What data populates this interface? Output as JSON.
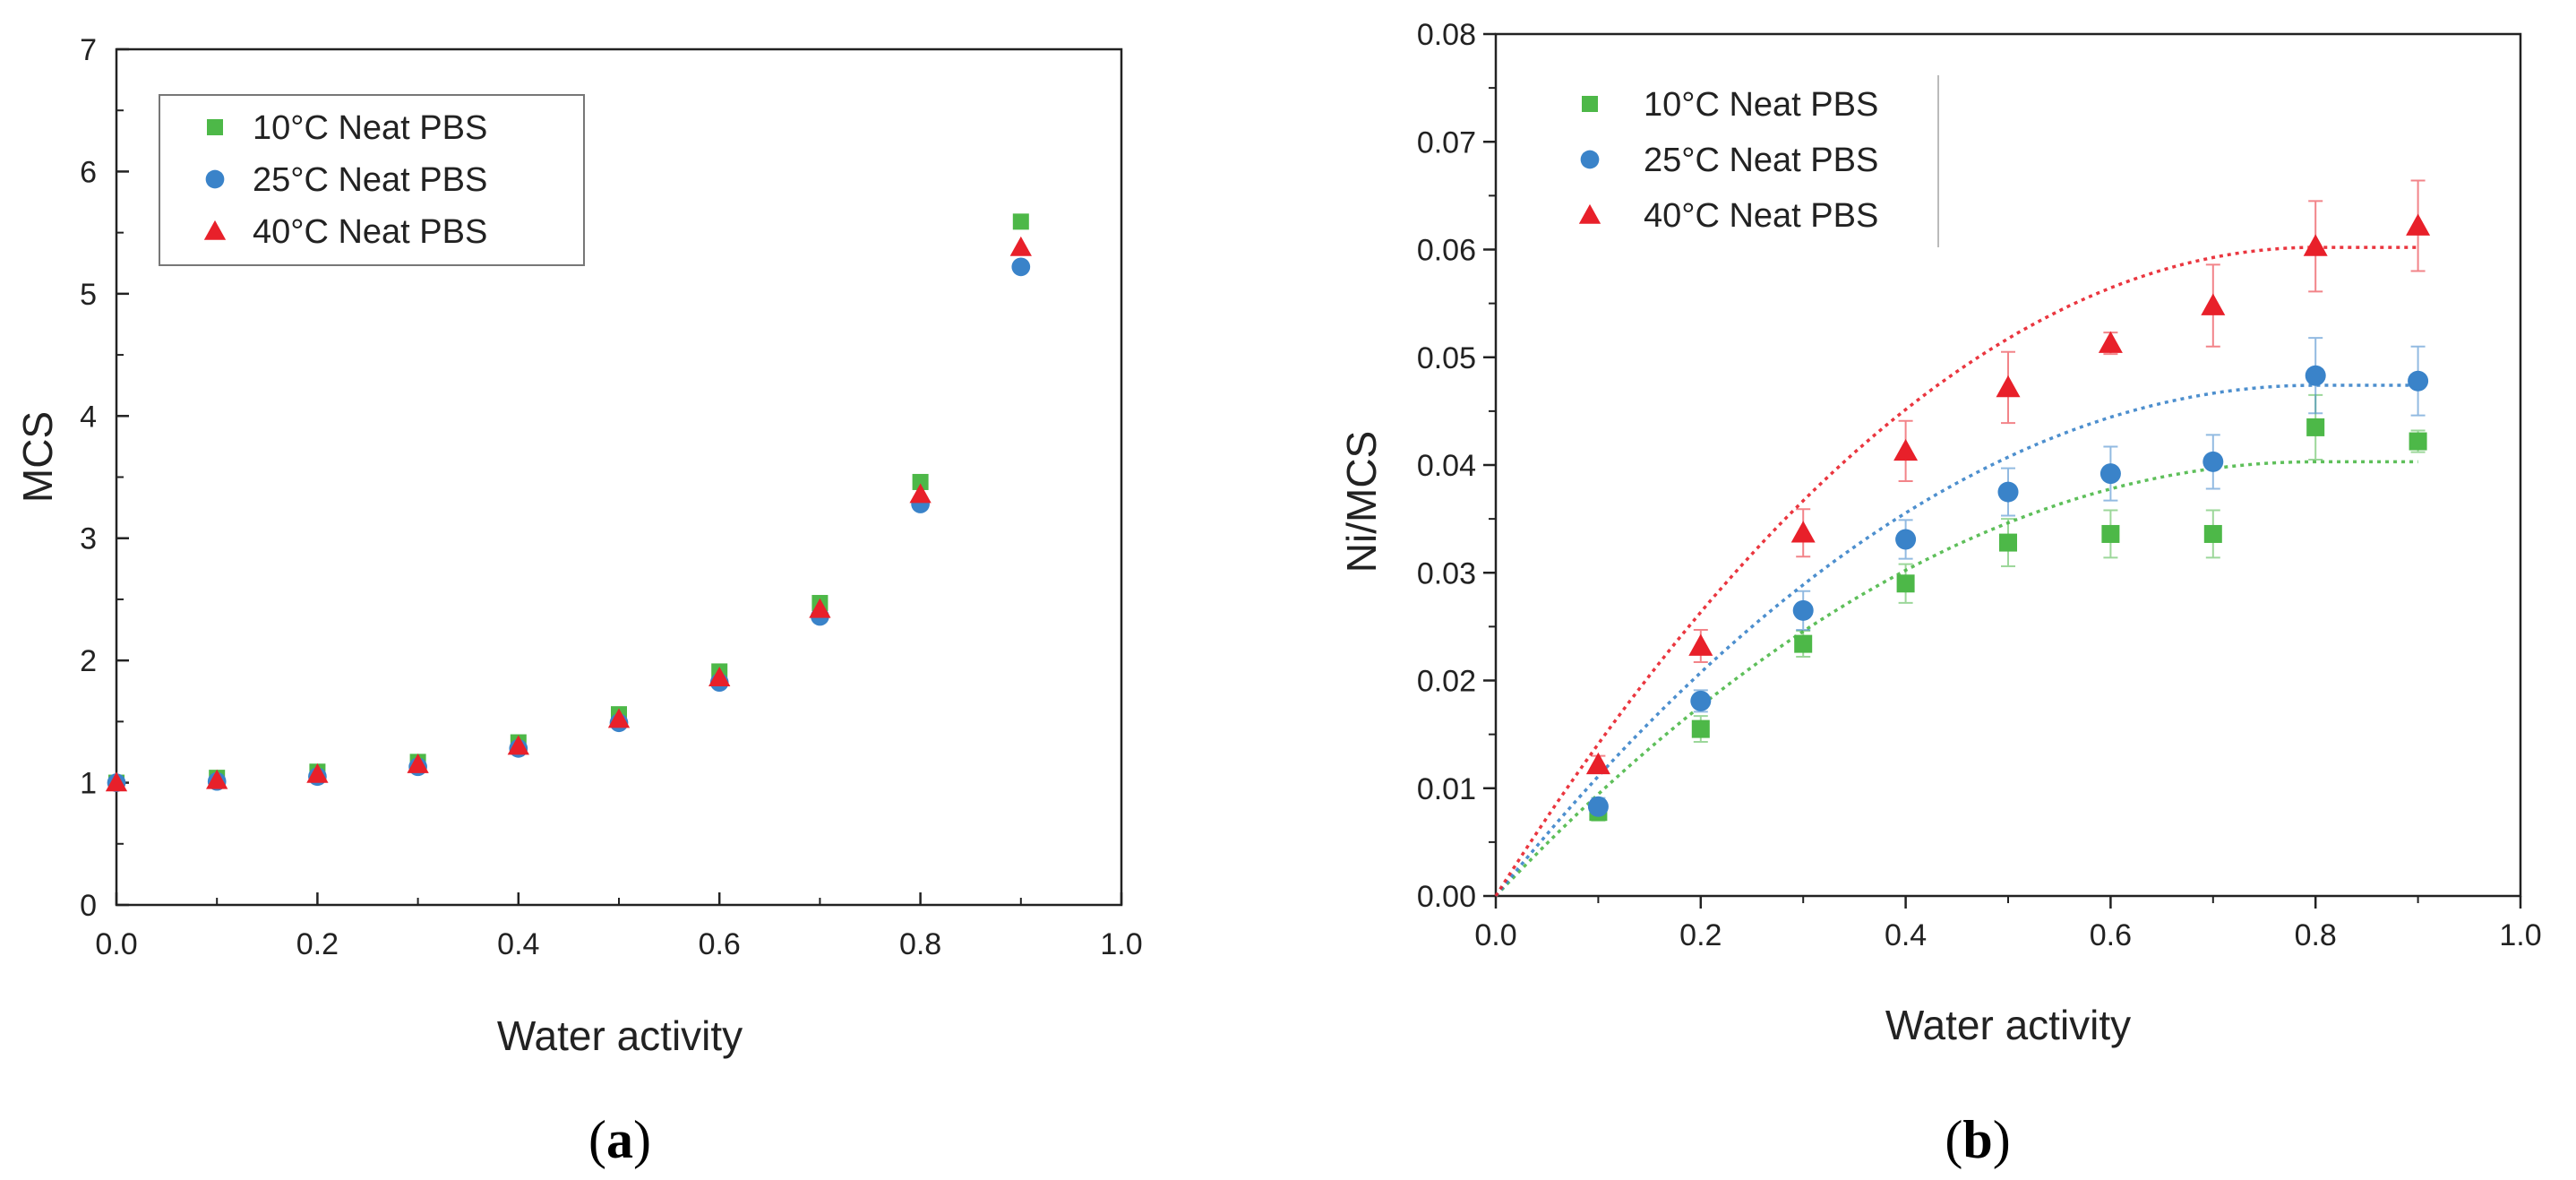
{
  "colors": {
    "green": "#4db848",
    "blue": "#3a83c9",
    "red": "#e8202a",
    "axis": "#222222"
  },
  "legend": [
    "10°C Neat PBS",
    "25°C Neat PBS",
    "40°C Neat PBS"
  ],
  "chart_data": [
    {
      "type": "scatter",
      "panel": "a",
      "caption": {
        "open": "(",
        "letter": "a",
        "close": ")"
      },
      "xlabel": "Water activity",
      "ylabel": "MCS",
      "xlim": [
        0.0,
        1.0
      ],
      "ylim": [
        0,
        7
      ],
      "xticks": [
        "0.0",
        "0.2",
        "0.4",
        "0.6",
        "0.8",
        "1.0"
      ],
      "yticks": [
        "0",
        "1",
        "2",
        "3",
        "4",
        "5",
        "6",
        "7"
      ],
      "legend_position": "top-left",
      "series": [
        {
          "name": "10°C Neat PBS",
          "marker": "square",
          "color": "#4db848",
          "x": [
            0.0,
            0.1,
            0.2,
            0.3,
            0.4,
            0.5,
            0.6,
            0.7,
            0.8,
            0.9
          ],
          "y": [
            1.0,
            1.04,
            1.09,
            1.17,
            1.33,
            1.56,
            1.91,
            2.47,
            3.46,
            5.59
          ]
        },
        {
          "name": "25°C Neat PBS",
          "marker": "circle",
          "color": "#3a83c9",
          "x": [
            0.0,
            0.1,
            0.2,
            0.3,
            0.4,
            0.5,
            0.6,
            0.7,
            0.8,
            0.9
          ],
          "y": [
            1.0,
            1.01,
            1.05,
            1.13,
            1.28,
            1.49,
            1.82,
            2.36,
            3.28,
            5.22
          ]
        },
        {
          "name": "40°C Neat PBS",
          "marker": "triangle",
          "color": "#e8202a",
          "x": [
            0.0,
            0.1,
            0.2,
            0.3,
            0.4,
            0.5,
            0.6,
            0.7,
            0.8,
            0.9
          ],
          "y": [
            1.0,
            1.02,
            1.07,
            1.15,
            1.3,
            1.52,
            1.86,
            2.42,
            3.36,
            5.38
          ]
        }
      ]
    },
    {
      "type": "scatter",
      "panel": "b",
      "caption": {
        "open": "(",
        "letter": "b",
        "close": ")"
      },
      "xlabel": "Water activity",
      "ylabel": "Ni/MCS",
      "xlim": [
        0.0,
        1.0
      ],
      "ylim": [
        0.0,
        0.08
      ],
      "xticks": [
        "0.0",
        "0.2",
        "0.4",
        "0.6",
        "0.8",
        "1.0"
      ],
      "yticks": [
        "0.00",
        "0.01",
        "0.02",
        "0.03",
        "0.04",
        "0.05",
        "0.06",
        "0.07",
        "0.08"
      ],
      "legend_position": "top-left",
      "series": [
        {
          "name": "10°C Neat PBS",
          "marker": "square",
          "color": "#4db848",
          "x": [
            0.1,
            0.2,
            0.3,
            0.4,
            0.5,
            0.6,
            0.7,
            0.8,
            0.9
          ],
          "y": [
            0.0078,
            0.0155,
            0.0234,
            0.029,
            0.0328,
            0.0336,
            0.0336,
            0.0435,
            0.0422
          ],
          "err": [
            0.0008,
            0.0012,
            0.0012,
            0.0018,
            0.0022,
            0.0022,
            0.0022,
            0.003,
            0.001
          ],
          "fit": {
            "peak": 0.0403,
            "at": 0.8
          }
        },
        {
          "name": "25°C Neat PBS",
          "marker": "circle",
          "color": "#3a83c9",
          "x": [
            0.1,
            0.2,
            0.3,
            0.4,
            0.5,
            0.6,
            0.7,
            0.8,
            0.9
          ],
          "y": [
            0.0083,
            0.0181,
            0.0265,
            0.0331,
            0.0375,
            0.0392,
            0.0403,
            0.0483,
            0.0478
          ],
          "err": [
            0.0008,
            0.001,
            0.0018,
            0.0018,
            0.0022,
            0.0025,
            0.0025,
            0.0035,
            0.0032
          ],
          "fit": {
            "peak": 0.0474,
            "at": 0.8
          }
        },
        {
          "name": "40°C Neat PBS",
          "marker": "triangle",
          "color": "#e8202a",
          "x": [
            0.1,
            0.2,
            0.3,
            0.4,
            0.5,
            0.6,
            0.7,
            0.8,
            0.9
          ],
          "y": [
            0.0122,
            0.0232,
            0.0337,
            0.0413,
            0.0472,
            0.0513,
            0.0548,
            0.0603,
            0.0622
          ],
          "err": [
            0.0008,
            0.0015,
            0.0022,
            0.0028,
            0.0033,
            0.001,
            0.0038,
            0.0042,
            0.0042
          ],
          "fit": {
            "peak": 0.0602,
            "at": 0.8
          }
        }
      ]
    }
  ]
}
